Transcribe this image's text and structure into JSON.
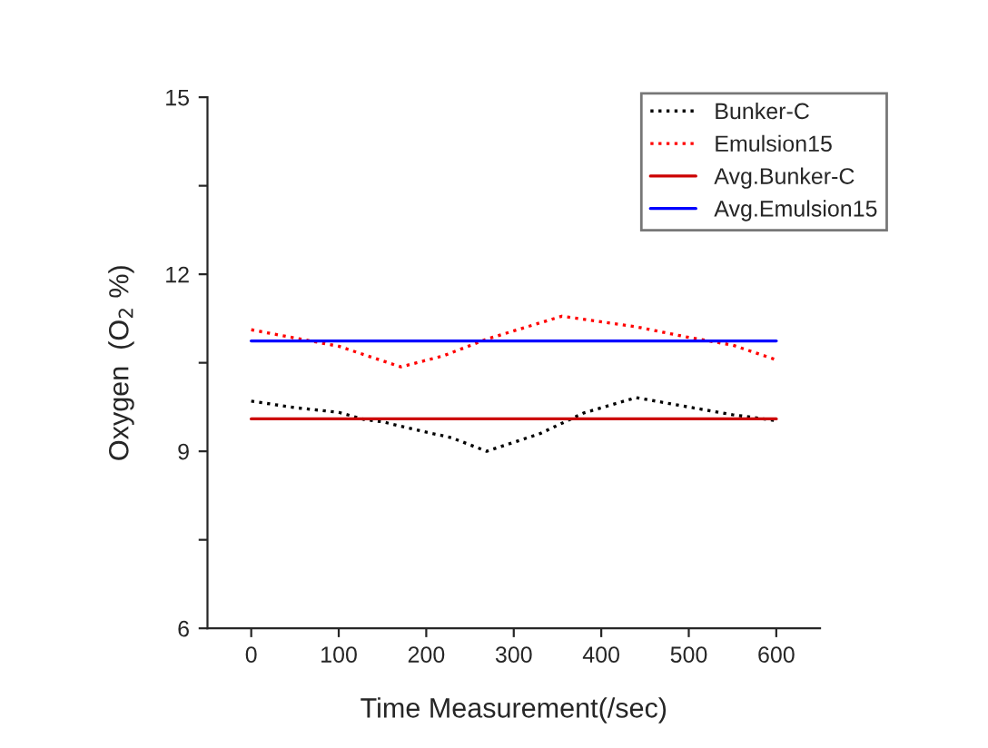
{
  "chart_data": {
    "type": "line",
    "xlabel": "Time Measurement(/sec)",
    "ylabel": "Oxygen  (O$_{2}$ %)",
    "xlim": [
      -50,
      650
    ],
    "xticks": [
      0,
      100,
      200,
      300,
      400,
      500,
      600
    ],
    "ylim": [
      6,
      15
    ],
    "yticks": [
      6,
      {
        "value": 7.5,
        "label": null
      },
      9,
      {
        "value": 10.5,
        "label": null
      },
      12,
      {
        "value": 13.5,
        "label": null
      },
      15
    ],
    "grid": false,
    "legend": "top right",
    "marker": "none",
    "series": [
      {
        "name": "Bunker-C",
        "color": "#000000",
        "line_style": "dotted",
        "x": [
          0,
          50,
          100,
          129,
          150,
          198,
          229,
          269,
          330,
          380,
          440,
          500,
          550,
          600
        ],
        "values": [
          9.85,
          9.74,
          9.66,
          9.54,
          9.5,
          9.33,
          9.23,
          9.0,
          9.3,
          9.65,
          9.91,
          9.75,
          9.62,
          9.52
        ]
      },
      {
        "name": "Emulsion15",
        "color": "#ff0000",
        "line_style": "dotted",
        "x": [
          0,
          50,
          100,
          171,
          220,
          269,
          355,
          440,
          500,
          550,
          600
        ],
        "values": [
          11.06,
          10.92,
          10.78,
          10.43,
          10.62,
          10.9,
          11.29,
          11.11,
          10.93,
          10.8,
          10.55
        ]
      },
      {
        "name": "Avg.Bunker-C",
        "color": "#cc0000",
        "line_style": "solid",
        "x": [
          0,
          600
        ],
        "values": [
          9.55,
          9.55
        ]
      },
      {
        "name": "Avg.Emulsion15",
        "color": "#0000ff",
        "line_style": "solid",
        "x": [
          0,
          600
        ],
        "values": [
          10.87,
          10.87
        ]
      }
    ]
  }
}
